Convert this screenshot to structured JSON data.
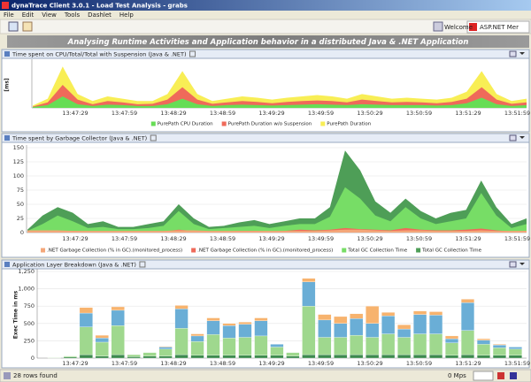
{
  "window": {
    "title": "dynaTrace Client 3.0.1 - Load Test Analysis - grabs"
  },
  "menu": [
    "File",
    "Edit",
    "View",
    "Tools",
    "Dashlet",
    "Help"
  ],
  "toolbar": {
    "tabs": [
      "Welcome",
      "ASP.NET Mer"
    ]
  },
  "banner": "Analysing Runtime Activities and Application behavior in a distributed Java & .NET Application",
  "panels": [
    {
      "title": "Time spent on CPU/Total/Total with Suspension (Java & .NET)",
      "chart": {
        "type": "area",
        "ylabel": "[ms]",
        "ylim": [
          0,
          100
        ],
        "xticks": [
          "13:47:29",
          "13:47:59",
          "13:48:29",
          "13:48:59",
          "13:49:29",
          "13:49:59",
          "13:50:29",
          "13:50:59",
          "13:51:29",
          "13:51:59"
        ],
        "series": [
          {
            "name": "PurePath CPU Duration",
            "color": "#66dd55",
            "values": [
              2,
              6,
              25,
              8,
              4,
              7,
              6,
              4,
              4,
              8,
              20,
              8,
              4,
              6,
              7,
              6,
              5,
              6,
              7,
              8,
              7,
              6,
              8,
              7,
              6,
              6,
              6,
              5,
              6,
              10,
              22,
              8,
              4,
              6
            ]
          },
          {
            "name": "PurePath Duration w/o Suspension",
            "color": "#ef6a5a",
            "values": [
              3,
              12,
              50,
              18,
              8,
              15,
              12,
              8,
              9,
              18,
              45,
              18,
              9,
              12,
              15,
              13,
              10,
              13,
              15,
              16,
              15,
              12,
              18,
              15,
              12,
              13,
              12,
              10,
              13,
              20,
              45,
              18,
              9,
              12
            ]
          },
          {
            "name": "PurePath Duration",
            "color": "#f8ee55",
            "values": [
              5,
              20,
              90,
              30,
              15,
              25,
              20,
              15,
              15,
              30,
              80,
              30,
              15,
              20,
              25,
              22,
              18,
              22,
              25,
              28,
              25,
              20,
              30,
              25,
              20,
              22,
              20,
              18,
              22,
              35,
              80,
              30,
              15,
              20
            ]
          }
        ]
      }
    },
    {
      "title": "Time spent by Garbage Collector (Java & .NET)",
      "chart": {
        "type": "area",
        "ylim": [
          0,
          150
        ],
        "yticks": [
          0,
          25,
          50,
          75,
          100,
          125,
          150
        ],
        "xticks": [
          "13:47:29",
          "13:47:59",
          "13:48:29",
          "13:48:59",
          "13:49:29",
          "13:49:59",
          "13:50:29",
          "13:50:59",
          "13:51:29",
          "13:51:59"
        ],
        "series": [
          {
            "name": ".NET Garbage Collection (% in GC).(monitored_process)",
            "color": "#f4a77a",
            "values": [
              4,
              4,
              4,
              3,
              3,
              3,
              3,
              3,
              3,
              3,
              4,
              4,
              3,
              3,
              3,
              3,
              3,
              3,
              3,
              3,
              4,
              5,
              5,
              4,
              3,
              4,
              4,
              3,
              3,
              3,
              4,
              3,
              3,
              3
            ]
          },
          {
            "name": ".NET Garbage Collection (% in GC).(monitored_process)",
            "color": "#ef6a5a",
            "values": [
              2,
              2,
              3,
              3,
              2,
              2,
              2,
              2,
              2,
              2,
              5,
              3,
              2,
              2,
              3,
              3,
              2,
              3,
              5,
              4,
              5,
              8,
              6,
              5,
              4,
              8,
              5,
              4,
              4,
              5,
              7,
              4,
              2,
              3
            ]
          },
          {
            "name": "Total GC Collection Time",
            "color": "#77dd66",
            "values": [
              3,
              15,
              30,
              20,
              8,
              10,
              6,
              6,
              8,
              12,
              38,
              15,
              6,
              8,
              10,
              12,
              8,
              12,
              15,
              15,
              28,
              80,
              60,
              30,
              20,
              45,
              25,
              15,
              20,
              25,
              70,
              30,
              8,
              15
            ]
          },
          {
            "name": "Total GC Collection Time",
            "color": "#4e9e57",
            "values": [
              5,
              30,
              45,
              35,
              15,
              20,
              10,
              10,
              15,
              20,
              50,
              25,
              10,
              12,
              18,
              22,
              15,
              20,
              25,
              25,
              45,
              145,
              110,
              55,
              35,
              60,
              38,
              25,
              35,
              40,
              92,
              45,
              15,
              25
            ]
          }
        ]
      }
    },
    {
      "title": "Application Layer Breakdown (Java & .NET)",
      "chart": {
        "type": "stacked_bar",
        "ylabel": "Exec Time in ms",
        "ylim": [
          0,
          1250
        ],
        "yticks": [
          0,
          250,
          500,
          750,
          {
            "value": 1000,
            "label": "1,000"
          },
          {
            "value": 1250,
            "label": "1,250"
          }
        ],
        "xticks": [
          "13:47:29",
          "13:47:59",
          "13:48:29",
          "13:48:59",
          "13:49:29",
          "13:49:59",
          "13:50:29",
          "13:50:59",
          "13:51:29",
          "13:51:59"
        ],
        "series": [
          {
            "color": "#3c8a4e",
            "values": [
              5,
              15,
              50,
              30,
              50,
              20,
              30,
              30,
              50,
              40,
              40,
              40,
              40,
              40,
              40,
              30,
              50,
              50,
              50,
              50,
              50,
              50,
              50,
              50,
              50,
              40,
              50,
              40,
              40,
              40
            ]
          },
          {
            "color": "#9fd88e",
            "values": [
              5,
              15,
              400,
              200,
              420,
              30,
              50,
              100,
              380,
              200,
              300,
              250,
              260,
              280,
              120,
              50,
              700,
              250,
              250,
              280,
              250,
              300,
              250,
              300,
              300,
              180,
              350,
              160,
              110,
              90
            ]
          },
          {
            "color": "#6aaed6",
            "values": [
              0,
              0,
              200,
              60,
              220,
              0,
              0,
              30,
              280,
              80,
              200,
              180,
              190,
              220,
              40,
              0,
              350,
              250,
              200,
              240,
              200,
              260,
              120,
              280,
              270,
              60,
              400,
              60,
              40,
              30
            ]
          },
          {
            "color": "#f7b36e",
            "values": [
              0,
              0,
              80,
              40,
              50,
              0,
              0,
              10,
              50,
              30,
              40,
              30,
              30,
              40,
              0,
              0,
              50,
              80,
              100,
              70,
              250,
              50,
              60,
              50,
              50,
              40,
              50,
              20,
              10,
              0
            ]
          }
        ]
      }
    }
  ],
  "status": {
    "left": "28 rows found",
    "right": "0 Mps"
  }
}
